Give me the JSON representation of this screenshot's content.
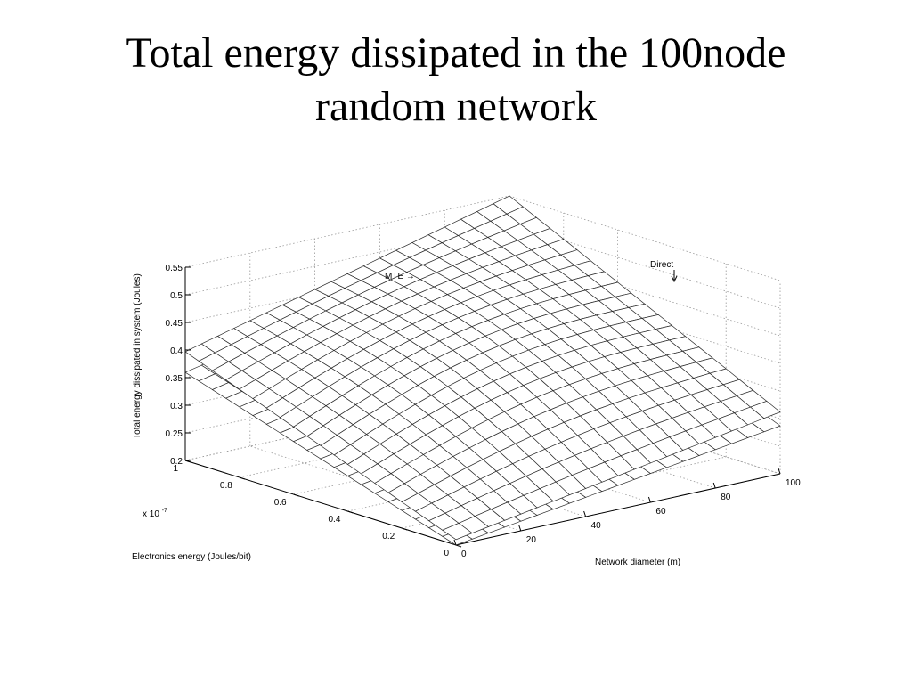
{
  "slide": {
    "title_line1": "Total energy dissipated in the 100node",
    "title_line2": "random network"
  },
  "chart_data": {
    "type": "surface",
    "zlabel": "Total energy dissipated in system (Joules)",
    "xlabel": "Electronics energy (Joules/bit)",
    "ylabel": "Network diameter (m)",
    "x_scale_label": "x 10",
    "x_scale_exponent": "-7",
    "x_ticks": [
      "0",
      "0.2",
      "0.4",
      "0.6",
      "0.8",
      "1"
    ],
    "y_ticks": [
      "0",
      "20",
      "40",
      "60",
      "80",
      "100"
    ],
    "z_ticks": [
      "0.2",
      "0.25",
      "0.3",
      "0.35",
      "0.4",
      "0.45",
      "0.5",
      "0.55"
    ],
    "xlim": [
      0,
      1
    ],
    "ylim": [
      0,
      100
    ],
    "zlim": [
      0.2,
      0.55
    ],
    "grid": true,
    "annotations": [
      {
        "text": "MTE →",
        "series": "MTE"
      },
      {
        "text": "Direct",
        "series": "Direct"
      }
    ],
    "series": [
      {
        "name": "MTE",
        "z_at_min_elec_min_diam": 0.21,
        "z_at_max_elec_max_diam": 0.55
      },
      {
        "name": "Direct",
        "z_at_min_elec_min_diam": 0.2,
        "z_at_max_elec_max_diam": 0.49
      }
    ]
  }
}
